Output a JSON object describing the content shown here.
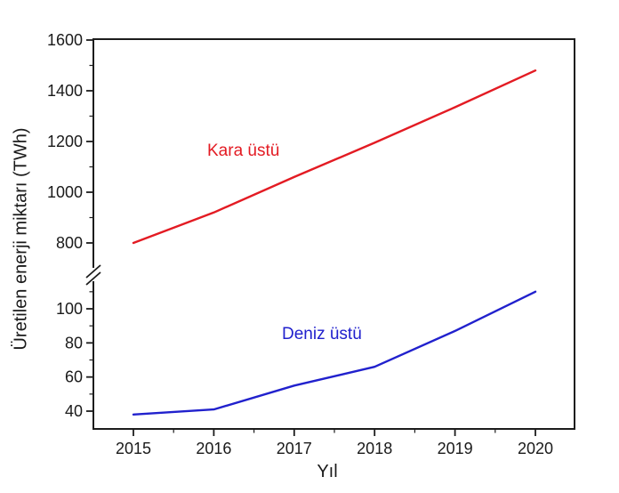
{
  "chart_data": {
    "type": "line",
    "title": "",
    "xlabel": "Yıl",
    "ylabel": "Üretilen enerji miktarı (TWh)",
    "grid": false,
    "legend_position": "inline-labels",
    "axis_color": "#1c1c1c",
    "text_color": "#1a1a1a",
    "x": [
      2015,
      2016,
      2017,
      2018,
      2019,
      2020
    ],
    "x_tick_labels": [
      "2015",
      "2016",
      "2017",
      "2018",
      "2019",
      "2020"
    ],
    "x_minor_ticks": [
      2015.5,
      2016.5,
      2017.5,
      2018.5,
      2019.5
    ],
    "y_axis": {
      "broken": true,
      "upper": {
        "range": [
          800,
          1600
        ],
        "major_ticks": [
          800,
          1000,
          1200,
          1400,
          1600
        ],
        "major_tick_labels": [
          "800",
          "1000",
          "1200",
          "1400",
          "1600"
        ],
        "minor_ticks": [
          900,
          1100,
          1300,
          1500
        ]
      },
      "lower": {
        "range": [
          30,
          122
        ],
        "major_ticks": [
          40,
          60,
          80,
          100
        ],
        "major_tick_labels": [
          "40",
          "60",
          "80",
          "100"
        ],
        "minor_ticks": [
          50,
          70,
          90,
          110
        ]
      }
    },
    "series": [
      {
        "name": "Kara üstü",
        "color": "#e31b23",
        "panel": "upper",
        "values": [
          800,
          920,
          1060,
          1195,
          1335,
          1480
        ]
      },
      {
        "name": "Deniz üstü",
        "color": "#2121cd",
        "panel": "lower",
        "values": [
          38,
          41,
          55,
          66,
          87,
          110
        ]
      }
    ]
  }
}
